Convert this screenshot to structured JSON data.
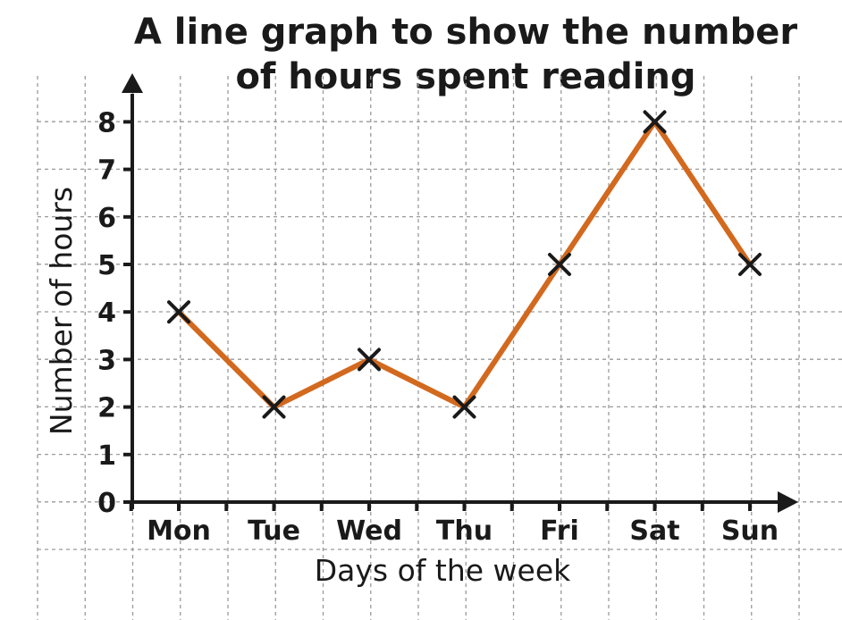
{
  "chart_data": {
    "type": "line",
    "title_lines": [
      "A line graph to show the number",
      "of hours spent reading"
    ],
    "xlabel": "Days of the week",
    "ylabel": "Number of hours",
    "categories": [
      "Mon",
      "Tue",
      "Wed",
      "Thu",
      "Fri",
      "Sat",
      "Sun"
    ],
    "yticks": [
      "0",
      "1",
      "2",
      "3",
      "4",
      "5",
      "6",
      "7",
      "8"
    ],
    "ylim": [
      0,
      8
    ],
    "grid": true,
    "marker": "x",
    "series": [
      {
        "values": [
          4,
          2,
          3,
          2,
          5,
          8,
          5
        ],
        "color": "#d2691e"
      }
    ]
  }
}
